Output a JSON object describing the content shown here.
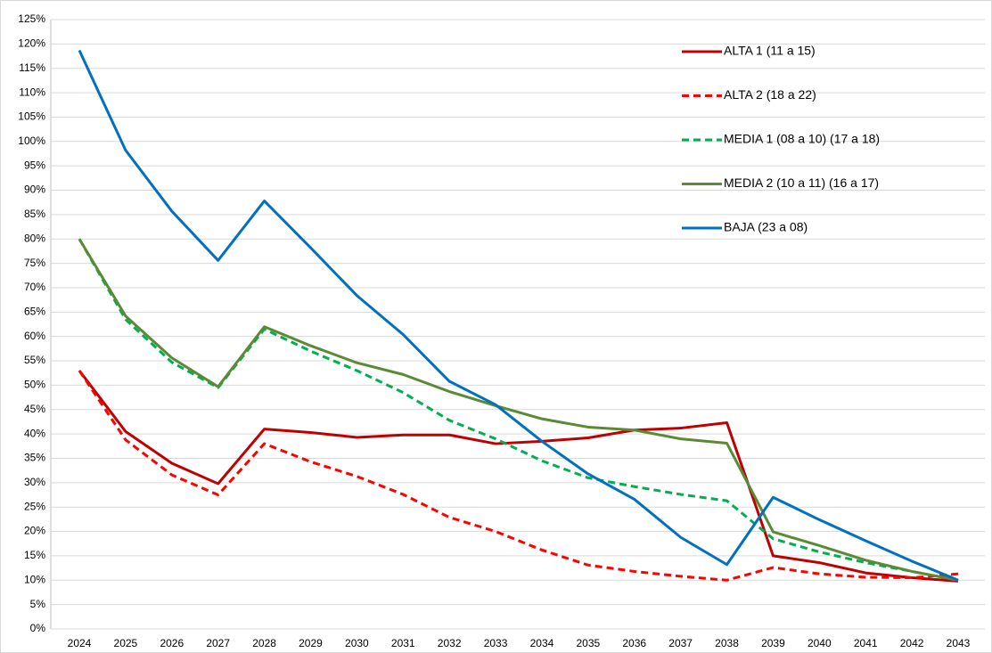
{
  "chart_data": {
    "type": "line",
    "categories": [
      "2024",
      "2025",
      "2026",
      "2027",
      "2028",
      "2029",
      "2030",
      "2031",
      "2032",
      "2033",
      "2034",
      "2035",
      "2036",
      "2037",
      "2038",
      "2039",
      "2040",
      "2041",
      "2042",
      "2043"
    ],
    "series": [
      {
        "name": "ALTA 1 (11 a 15)",
        "color": "#c00000",
        "dashed": false,
        "values": [
          53,
          40.5,
          34,
          29.8,
          41,
          40.3,
          39.3,
          39.8,
          39.8,
          38,
          38.5,
          39.2,
          40.8,
          41.2,
          42.3,
          15,
          13.6,
          11.5,
          10.5,
          9.8
        ]
      },
      {
        "name": "ALTA 2 (18 a 22)",
        "color": "#ff0000",
        "dashed": true,
        "values": [
          53,
          38.8,
          31.6,
          27.5,
          38,
          34.3,
          31.3,
          27.6,
          22.9,
          20,
          16.2,
          13.1,
          11.8,
          10.8,
          10,
          12.6,
          11.3,
          10.6,
          10.5,
          11.3
        ]
      },
      {
        "name": "MEDIA 1 (08 a 10) (17 a 18)",
        "color": "#00b050",
        "dashed": true,
        "values": [
          80,
          63.5,
          54.7,
          49.5,
          61.5,
          57,
          53,
          48.5,
          42.8,
          39,
          34.5,
          31,
          29.2,
          27.6,
          26.3,
          18.5,
          15.8,
          13.6,
          11.8,
          10
        ]
      },
      {
        "name": "MEDIA 2 (10 a 11) (16 a 17)",
        "color": "#5a8a35",
        "dashed": false,
        "values": [
          80,
          64.2,
          55.6,
          49.7,
          62,
          58.1,
          54.6,
          52.2,
          48.7,
          45.8,
          43.1,
          41.4,
          40.8,
          39,
          38.1,
          19.9,
          17.1,
          14.1,
          11.8,
          10
        ]
      },
      {
        "name": "BAJA (23 a 08)",
        "color": "#0070c0",
        "dashed": false,
        "values": [
          118.7,
          98.2,
          85.7,
          75.6,
          87.8,
          78.2,
          68.4,
          60.4,
          50.8,
          46,
          38.5,
          31.8,
          26.6,
          18.8,
          13.2,
          27,
          22.4,
          18.1,
          13.9,
          10
        ]
      }
    ],
    "ylim": [
      0,
      125
    ],
    "yticks": [
      {
        "value": 0,
        "label": "0%"
      },
      {
        "value": 5,
        "label": "5%"
      },
      {
        "value": 10,
        "label": "10%"
      },
      {
        "value": 15,
        "label": "15%"
      },
      {
        "value": 20,
        "label": "20%"
      },
      {
        "value": 25,
        "label": "25%"
      },
      {
        "value": 30,
        "label": "30%"
      },
      {
        "value": 35,
        "label": "35%"
      },
      {
        "value": 40,
        "label": "40%"
      },
      {
        "value": 45,
        "label": "45%"
      },
      {
        "value": 50,
        "label": "50%"
      },
      {
        "value": 55,
        "label": "55%"
      },
      {
        "value": 60,
        "label": "60%"
      },
      {
        "value": 65,
        "label": "65%"
      },
      {
        "value": 70,
        "label": "70%"
      },
      {
        "value": 75,
        "label": "75%"
      },
      {
        "value": 80,
        "label": "80%"
      },
      {
        "value": 85,
        "label": "85%"
      },
      {
        "value": 90,
        "label": "90%"
      },
      {
        "value": 95,
        "label": "95%"
      },
      {
        "value": 100,
        "label": "100%"
      },
      {
        "value": 105,
        "label": "105%"
      },
      {
        "value": 110,
        "label": "110%"
      },
      {
        "value": 115,
        "label": "115%"
      },
      {
        "value": 120,
        "label": "120%"
      },
      {
        "value": 125,
        "label": "125%"
      }
    ],
    "grid": true,
    "legend": "top-right"
  }
}
